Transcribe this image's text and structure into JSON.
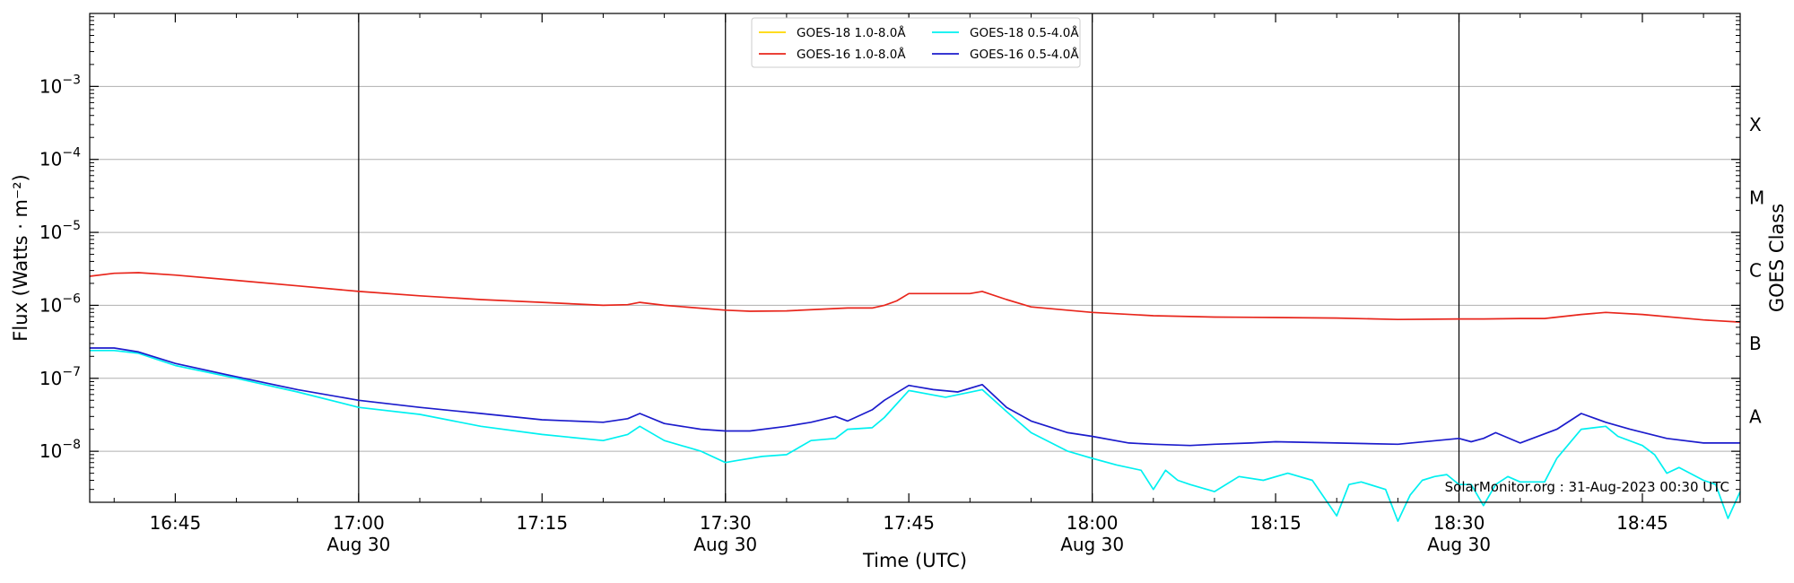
{
  "chart_data": {
    "type": "line",
    "ylabel": "Flux (Watts · m⁻²)",
    "xlabel": "Time (UTC)",
    "right_ylabel": "GOES Class",
    "credit": "SolarMonitor.org : 31-Aug-2023 00:30 UTC",
    "y_scale": "log",
    "ylim": [
      2e-09,
      0.01
    ],
    "xlim": [
      "16:38",
      "18:53"
    ],
    "grid": "horizontal",
    "legend_placement": "top-center",
    "y_ticks": [
      {
        "value": 1e-08,
        "mantissa": "10",
        "exponent": "−8"
      },
      {
        "value": 1e-07,
        "mantissa": "10",
        "exponent": "−7"
      },
      {
        "value": 1e-06,
        "mantissa": "10",
        "exponent": "−6"
      },
      {
        "value": 1e-05,
        "mantissa": "10",
        "exponent": "−5"
      },
      {
        "value": 0.0001,
        "mantissa": "10",
        "exponent": "−4"
      },
      {
        "value": 0.001,
        "mantissa": "10",
        "exponent": "−3"
      }
    ],
    "x_ticks": [
      {
        "time": "16:45",
        "label": "16:45",
        "date": ""
      },
      {
        "time": "17:00",
        "label": "17:00",
        "date": "Aug 30"
      },
      {
        "time": "17:15",
        "label": "17:15",
        "date": ""
      },
      {
        "time": "17:30",
        "label": "17:30",
        "date": "Aug 30"
      },
      {
        "time": "17:45",
        "label": "17:45",
        "date": ""
      },
      {
        "time": "18:00",
        "label": "18:00",
        "date": "Aug 30"
      },
      {
        "time": "18:15",
        "label": "18:15",
        "date": ""
      },
      {
        "time": "18:30",
        "label": "18:30",
        "date": "Aug 30"
      },
      {
        "time": "18:45",
        "label": "18:45",
        "date": ""
      }
    ],
    "vlines": [
      "17:00",
      "17:30",
      "18:00",
      "18:30"
    ],
    "goes_classes": [
      {
        "label": "A",
        "value": 3e-08
      },
      {
        "label": "B",
        "value": 3e-07
      },
      {
        "label": "C",
        "value": 3e-06
      },
      {
        "label": "M",
        "value": 3e-05
      },
      {
        "label": "X",
        "value": 0.0003
      }
    ],
    "series": [
      {
        "name": "GOES-18 1.0-8.0Å",
        "color": "#FFD700",
        "x": [],
        "y": []
      },
      {
        "name": "GOES-16 1.0-8.0Å",
        "color": "#E8261C",
        "x": [
          "16:38",
          "16:40",
          "16:42",
          "16:45",
          "16:50",
          "16:55",
          "17:00",
          "17:05",
          "17:10",
          "17:15",
          "17:20",
          "17:22",
          "17:23",
          "17:25",
          "17:30",
          "17:32",
          "17:35",
          "17:40",
          "17:42",
          "17:43",
          "17:44",
          "17:45",
          "17:48",
          "17:50",
          "17:51",
          "17:53",
          "17:55",
          "18:00",
          "18:05",
          "18:10",
          "18:15",
          "18:20",
          "18:25",
          "18:30",
          "18:32",
          "18:35",
          "18:37",
          "18:40",
          "18:42",
          "18:45",
          "18:50",
          "18:53"
        ],
        "y": [
          2.5e-06,
          2.75e-06,
          2.8e-06,
          2.6e-06,
          2.2e-06,
          1.85e-06,
          1.55e-06,
          1.35e-06,
          1.2e-06,
          1.1e-06,
          1e-06,
          1.02e-06,
          1.1e-06,
          1e-06,
          8.6e-07,
          8.3e-07,
          8.4e-07,
          9.2e-07,
          9.2e-07,
          1e-06,
          1.15e-06,
          1.45e-06,
          1.45e-06,
          1.45e-06,
          1.55e-06,
          1.2e-06,
          9.5e-07,
          8e-07,
          7.2e-07,
          6.9e-07,
          6.8e-07,
          6.7e-07,
          6.4e-07,
          6.5e-07,
          6.5e-07,
          6.6e-07,
          6.6e-07,
          7.5e-07,
          8e-07,
          7.5e-07,
          6.3e-07,
          5.9e-07
        ]
      },
      {
        "name": "GOES-18 0.5-4.0Å",
        "color": "#00F0F0",
        "x": [
          "16:38",
          "16:40",
          "16:42",
          "16:45",
          "16:50",
          "16:55",
          "17:00",
          "17:05",
          "17:10",
          "17:15",
          "17:20",
          "17:22",
          "17:23",
          "17:25",
          "17:28",
          "17:30",
          "17:31",
          "17:33",
          "17:35",
          "17:37",
          "17:39",
          "17:40",
          "17:42",
          "17:43",
          "17:45",
          "17:48",
          "17:51",
          "17:53",
          "17:55",
          "17:58",
          "18:00",
          "18:02",
          "18:04",
          "18:05",
          "18:06",
          "18:07",
          "18:08",
          "18:10",
          "18:12",
          "18:14",
          "18:16",
          "18:18",
          "18:20",
          "18:21",
          "18:22",
          "18:24",
          "18:25",
          "18:26",
          "18:27",
          "18:28",
          "18:29",
          "18:30",
          "18:31",
          "18:32",
          "18:33",
          "18:34",
          "18:35",
          "18:37",
          "18:38",
          "18:40",
          "18:42",
          "18:43",
          "18:45",
          "18:46",
          "18:47",
          "18:48",
          "18:50",
          "18:51",
          "18:52",
          "18:53"
        ],
        "y": [
          2.4e-07,
          2.4e-07,
          2.2e-07,
          1.5e-07,
          1e-07,
          6.5e-08,
          4e-08,
          3.2e-08,
          2.2e-08,
          1.7e-08,
          1.4e-08,
          1.7e-08,
          2.2e-08,
          1.4e-08,
          1e-08,
          7e-09,
          7.5e-09,
          8.5e-09,
          9e-09,
          1.4e-08,
          1.5e-08,
          2e-08,
          2.1e-08,
          2.9e-08,
          6.8e-08,
          5.5e-08,
          7e-08,
          3.5e-08,
          1.8e-08,
          1e-08,
          8e-09,
          6.5e-09,
          5.5e-09,
          3e-09,
          5.5e-09,
          4e-09,
          3.5e-09,
          2.8e-09,
          4.5e-09,
          4e-09,
          5e-09,
          4e-09,
          1.3e-09,
          3.5e-09,
          3.8e-09,
          3e-09,
          1.1e-09,
          2.5e-09,
          4e-09,
          4.5e-09,
          4.8e-09,
          3.5e-09,
          3.5e-09,
          1.8e-09,
          3.5e-09,
          4.5e-09,
          3.8e-09,
          3.8e-09,
          8e-09,
          2e-08,
          2.2e-08,
          1.6e-08,
          1.2e-08,
          9e-09,
          5e-09,
          6e-09,
          4e-09,
          3.5e-09,
          1.2e-09,
          2.8e-09
        ]
      },
      {
        "name": "GOES-16 0.5-4.0Å",
        "color": "#1C1CCC",
        "x": [
          "16:38",
          "16:40",
          "16:42",
          "16:45",
          "16:50",
          "16:55",
          "17:00",
          "17:05",
          "17:10",
          "17:15",
          "17:20",
          "17:22",
          "17:23",
          "17:25",
          "17:28",
          "17:30",
          "17:32",
          "17:35",
          "17:37",
          "17:39",
          "17:40",
          "17:42",
          "17:43",
          "17:45",
          "17:47",
          "17:49",
          "17:51",
          "17:53",
          "17:55",
          "17:58",
          "18:00",
          "18:03",
          "18:05",
          "18:08",
          "18:10",
          "18:13",
          "18:15",
          "18:20",
          "18:25",
          "18:30",
          "18:31",
          "18:32",
          "18:33",
          "18:35",
          "18:38",
          "18:40",
          "18:42",
          "18:44",
          "18:47",
          "18:50",
          "18:53"
        ],
        "y": [
          2.6e-07,
          2.6e-07,
          2.3e-07,
          1.6e-07,
          1.05e-07,
          7e-08,
          5e-08,
          4e-08,
          3.3e-08,
          2.7e-08,
          2.5e-08,
          2.8e-08,
          3.3e-08,
          2.4e-08,
          2e-08,
          1.9e-08,
          1.9e-08,
          2.2e-08,
          2.5e-08,
          3e-08,
          2.6e-08,
          3.7e-08,
          5e-08,
          8e-08,
          7e-08,
          6.5e-08,
          8.2e-08,
          4e-08,
          2.6e-08,
          1.8e-08,
          1.6e-08,
          1.3e-08,
          1.25e-08,
          1.2e-08,
          1.25e-08,
          1.3e-08,
          1.35e-08,
          1.3e-08,
          1.25e-08,
          1.5e-08,
          1.35e-08,
          1.5e-08,
          1.8e-08,
          1.3e-08,
          2e-08,
          3.3e-08,
          2.5e-08,
          2e-08,
          1.5e-08,
          1.3e-08,
          1.3e-08
        ]
      }
    ]
  }
}
